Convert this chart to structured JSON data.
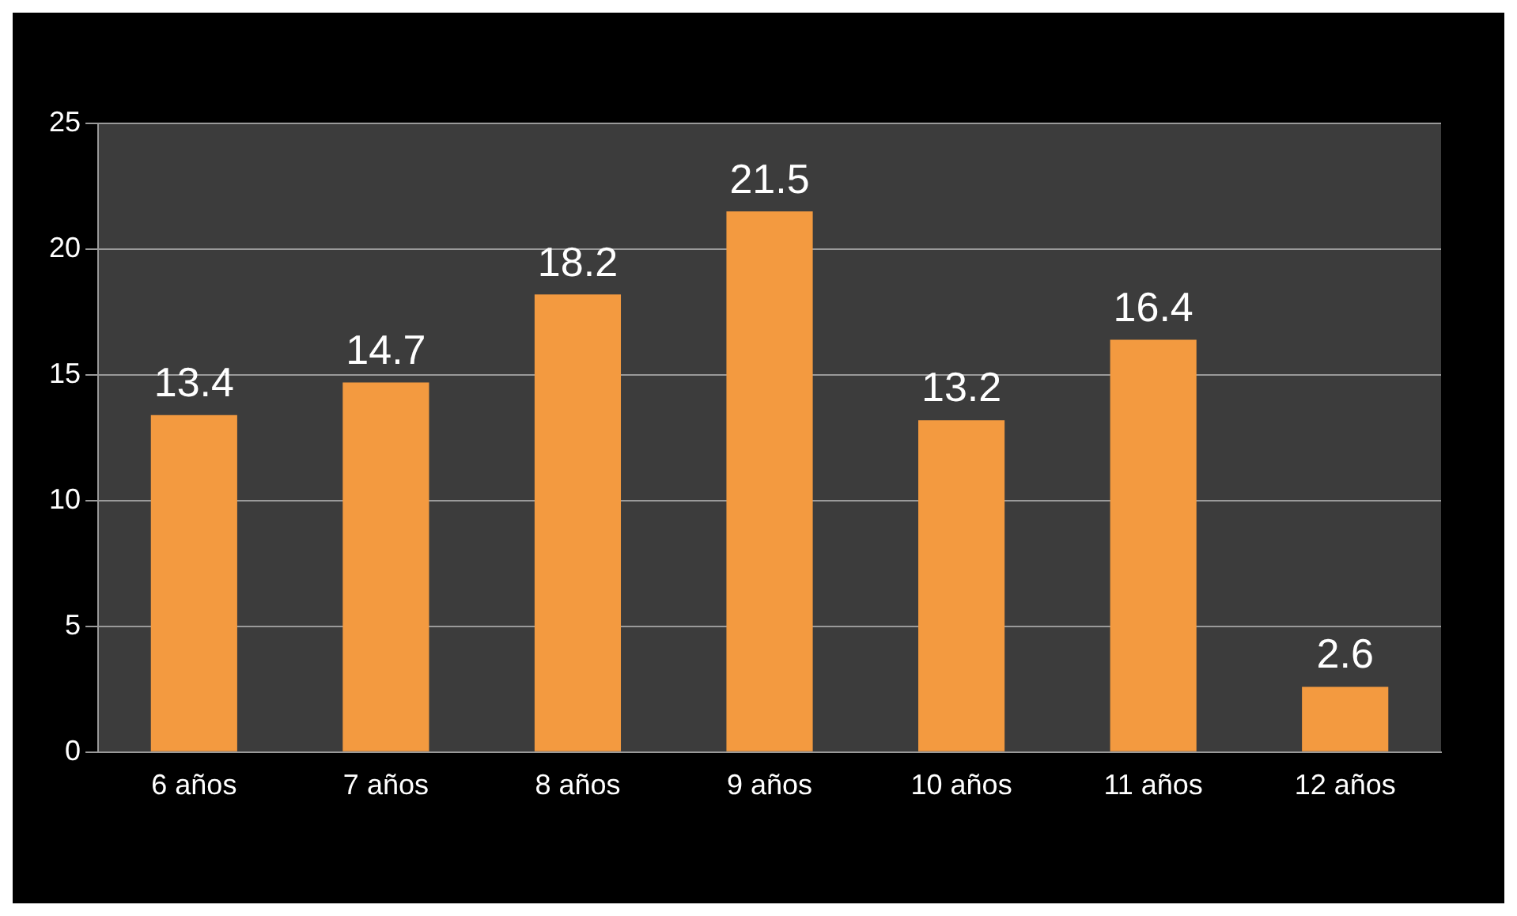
{
  "chart_data": {
    "type": "bar",
    "categories": [
      "6 años",
      "7 años",
      "8 años",
      "9 años",
      "10 años",
      "11 años",
      "12 años"
    ],
    "values": [
      13.4,
      14.7,
      18.2,
      21.5,
      13.2,
      16.4,
      2.6
    ],
    "color": "#f39a40",
    "ylim": [
      0,
      25
    ],
    "yticks": [
      0,
      5,
      10,
      15,
      20,
      25
    ],
    "grid": "y",
    "data_labels": true
  }
}
